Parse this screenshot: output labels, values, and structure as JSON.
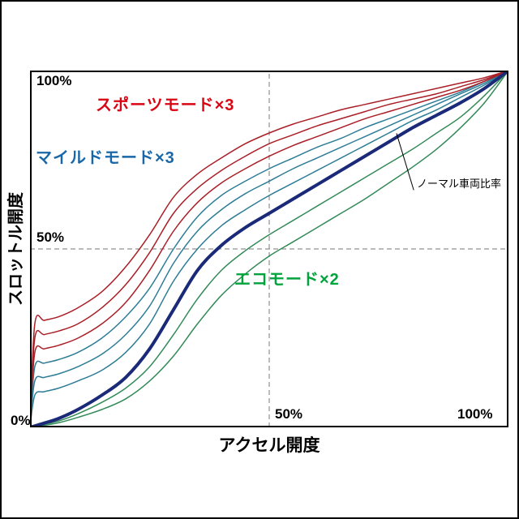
{
  "page": {
    "background": "#ffffff",
    "frame_color": "#000000"
  },
  "ticks": {
    "y_100": "100%",
    "y_50": "50%",
    "origin": "0%",
    "x_50": "50%",
    "x_100": "100%"
  },
  "labels": {
    "sport": {
      "text": "スポーツモード×3",
      "color": "#d90614"
    },
    "mild": {
      "text": "マイルドモード×3",
      "color": "#1967a8"
    },
    "eco": {
      "text": "エコモード×2",
      "color": "#00a33c"
    }
  },
  "chart_data": {
    "type": "line",
    "title": "",
    "xlabel": "アクセル開度",
    "ylabel": "スロットル開度",
    "xlim": [
      0,
      100
    ],
    "ylim": [
      0,
      100
    ],
    "x_tick_labels": [
      "0%",
      "50%",
      "100%"
    ],
    "y_tick_labels": [
      "0%",
      "50%",
      "100%"
    ],
    "grid": {
      "x_dashed_at": 50,
      "y_dashed_at": 50,
      "color": "#909090",
      "style": "dashed"
    },
    "legend_position": "in-plot-text-labels",
    "x": [
      0,
      1,
      3,
      6,
      10,
      15,
      20,
      25,
      30,
      35,
      40,
      45,
      50,
      55,
      60,
      65,
      70,
      75,
      80,
      85,
      90,
      95,
      100
    ],
    "series": [
      {
        "name": "エコモード2",
        "group": "eco",
        "color": "#338a58",
        "width": 1.5,
        "y": [
          0,
          0.2,
          0.6,
          1.3,
          2.8,
          5,
          8,
          13,
          20,
          29,
          37,
          43,
          48,
          52,
          56,
          60,
          64,
          68.5,
          73,
          78,
          84,
          91,
          100
        ]
      },
      {
        "name": "エコモード1",
        "group": "eco",
        "color": "#338a58",
        "width": 1.5,
        "y": [
          0,
          0.3,
          0.9,
          1.8,
          3.8,
          7,
          11,
          17,
          26,
          36,
          44,
          49.5,
          54,
          58,
          62,
          66,
          70,
          74,
          78,
          82.5,
          87,
          93,
          100
        ]
      },
      {
        "name": "マイルドモード1",
        "group": "mild",
        "color": "#2e7d96",
        "width": 1.5,
        "y": [
          0,
          9,
          10,
          11,
          13,
          16,
          21,
          29,
          41,
          50,
          56.5,
          61,
          65,
          68.5,
          72,
          75.5,
          79,
          82.5,
          86,
          89,
          92.5,
          96,
          100
        ]
      },
      {
        "name": "マイルドモード2",
        "group": "mild",
        "color": "#2e7d96",
        "width": 1.5,
        "y": [
          0,
          13,
          14,
          15,
          17,
          20.5,
          26,
          34,
          46,
          55,
          61,
          65.5,
          69,
          72.5,
          75.5,
          78.5,
          81.5,
          84.5,
          87.5,
          90.5,
          93.5,
          96.5,
          100
        ]
      },
      {
        "name": "マイルドモード3",
        "group": "mild",
        "color": "#2e7d96",
        "width": 1.5,
        "y": [
          0,
          17,
          18,
          19,
          21,
          25,
          31,
          39,
          50,
          59,
          65,
          69,
          72.5,
          75.5,
          78.5,
          81,
          84,
          86.5,
          89,
          91.5,
          94,
          97,
          100
        ]
      },
      {
        "name": "スポーツモード1",
        "group": "sport",
        "color": "#aa1f27",
        "width": 1.5,
        "y": [
          0,
          21,
          22,
          23,
          25,
          29,
          35,
          44,
          55,
          63,
          68.5,
          72.5,
          76,
          79,
          81.5,
          84,
          86.5,
          88.5,
          90.5,
          92.5,
          94.5,
          97,
          100
        ]
      },
      {
        "name": "スポーツモード2",
        "group": "sport",
        "color": "#aa1f27",
        "width": 1.5,
        "y": [
          0,
          25,
          26,
          27,
          29,
          33.5,
          40,
          49,
          60,
          67,
          72,
          76,
          79.5,
          82,
          84.5,
          86.5,
          88.5,
          90.5,
          92,
          93.5,
          95.5,
          97.5,
          100
        ]
      },
      {
        "name": "スポーツモード3",
        "group": "sport",
        "color": "#aa1f27",
        "width": 1.5,
        "y": [
          0,
          29,
          30,
          31,
          33.5,
          38,
          45,
          54,
          64.5,
          71,
          75.5,
          79.5,
          82.5,
          85,
          87,
          89,
          90.5,
          92,
          93.5,
          95,
          96.5,
          98,
          100
        ]
      },
      {
        "name": "ノーマル車両比率",
        "group": "normal",
        "color": "#1a2a79",
        "width": 4,
        "y": [
          0,
          0.4,
          1.2,
          2.5,
          5,
          9,
          14,
          22,
          33,
          44,
          51,
          56,
          60,
          64,
          68,
          72,
          76,
          80,
          84,
          87.5,
          91,
          95,
          100
        ]
      }
    ],
    "annotation": {
      "text": "ノーマル車両比率",
      "from_pct": [
        80.2,
        66.5
      ],
      "to_pct": [
        76.6,
        82.4
      ],
      "color": "#000000"
    }
  }
}
